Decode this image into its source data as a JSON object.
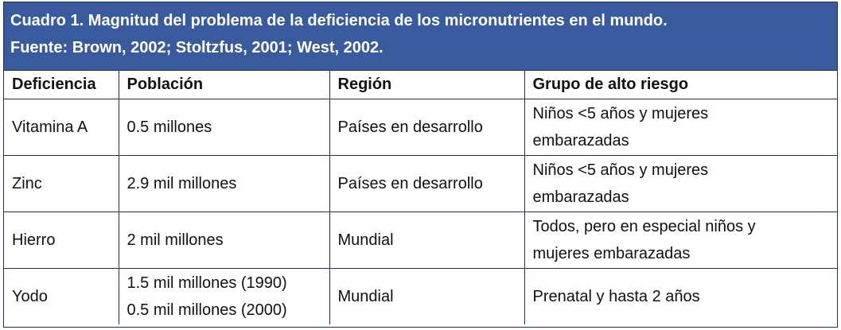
{
  "caption": {
    "line1": "Cuadro 1. Magnitud del problema de la deficiencia de los micronutrientes en el mundo.",
    "line2": "Fuente: Brown, 2002; Stoltzfus, 2001; West, 2002."
  },
  "columns": [
    "Deficiencia",
    "Población",
    "Región",
    "Grupo de alto riesgo"
  ],
  "rows": [
    {
      "deficiencia": "Vitamina A",
      "poblacion": [
        "0.5 millones"
      ],
      "region": "Países en desarrollo",
      "grupo": [
        "Niños <5 años y mujeres",
        "embarazadas"
      ]
    },
    {
      "deficiencia": "Zinc",
      "poblacion": [
        "2.9 mil millones"
      ],
      "region": "Países en desarrollo",
      "grupo": [
        "Niños <5 años y mujeres",
        "embarazadas"
      ]
    },
    {
      "deficiencia": "Hierro",
      "poblacion": [
        "2 mil millones"
      ],
      "region": "Mundial",
      "grupo": [
        "Todos, pero en especial niños y",
        "mujeres embarazadas"
      ]
    },
    {
      "deficiencia": "Yodo",
      "poblacion": [
        "1.5 mil millones (1990)",
        "0.5 mil millones (2000)"
      ],
      "region": "Mundial",
      "grupo": [
        "Prenatal y hasta 2 años"
      ]
    }
  ]
}
